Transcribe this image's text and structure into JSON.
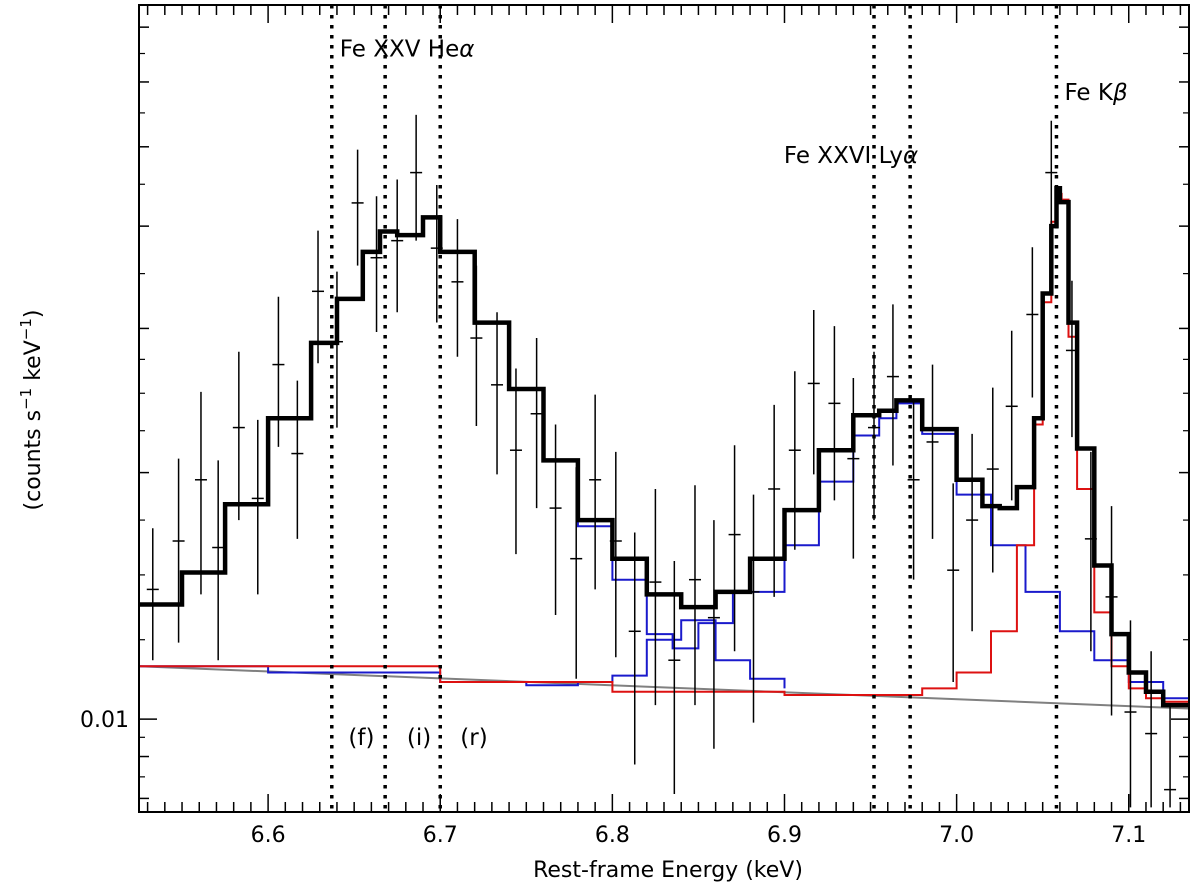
{
  "chart_data": {
    "type": "line",
    "title": "",
    "xlabel": "Rest-frame Energy (keV)",
    "ylabel_parts": [
      "counts s",
      "−1",
      " keV",
      "−1",
      ")"
    ],
    "ylabel_open": "(",
    "xlim": [
      6.525,
      7.135
    ],
    "ylim": [
      0.0077,
      0.0745
    ],
    "yscale": "log",
    "grid": false,
    "legend": "none",
    "x_ticks": [
      {
        "v": 6.6,
        "label": "6.6"
      },
      {
        "v": 6.7,
        "label": "6.7"
      },
      {
        "v": 6.8,
        "label": "6.8"
      },
      {
        "v": 6.9,
        "label": "6.9"
      },
      {
        "v": 7.0,
        "label": "7.0"
      },
      {
        "v": 7.1,
        "label": "7.1"
      }
    ],
    "y_ticks": [
      {
        "v": 0.01,
        "label": "0.01"
      }
    ],
    "vlines": [
      6.637,
      6.668,
      6.7,
      6.952,
      6.973,
      7.058
    ],
    "annotations": [
      {
        "text": "Fe XXV He",
        "greek": "α",
        "x": 6.637,
        "y": 0.0645
      },
      {
        "text": "Fe XXVI Ly",
        "greek": "α",
        "x": 6.895,
        "y": 0.0478
      },
      {
        "text": "Fe K",
        "greek": "β",
        "x": 7.058,
        "y": 0.057
      },
      {
        "text": "(f)",
        "greek": "",
        "x": 6.642,
        "y": 0.0093
      },
      {
        "text": "(i)",
        "greek": "",
        "x": 6.676,
        "y": 0.0093
      },
      {
        "text": "(r)",
        "greek": "",
        "x": 6.707,
        "y": 0.0093
      }
    ],
    "colors": {
      "total": "#000000",
      "lines": "#1a1acc",
      "kbeta": "#dd1111",
      "continuum": "#808080"
    },
    "series": [
      {
        "role": "total",
        "x": [
          6.525,
          6.55,
          6.575,
          6.6,
          6.625,
          6.64,
          6.655,
          6.665,
          6.675,
          6.69,
          6.7,
          6.72,
          6.74,
          6.76,
          6.78,
          6.8,
          6.82,
          6.84,
          6.86,
          6.88,
          6.9,
          6.92,
          6.94,
          6.955,
          6.965,
          6.98,
          7.0,
          7.015,
          7.025,
          7.035,
          7.045,
          7.05,
          7.055,
          7.058,
          7.06,
          7.065,
          7.07,
          7.08,
          7.09,
          7.1,
          7.11,
          7.12,
          7.135
        ],
        "y": [
          0.0138,
          0.0151,
          0.0183,
          0.0233,
          0.0288,
          0.0326,
          0.0372,
          0.0394,
          0.039,
          0.041,
          0.0372,
          0.0305,
          0.0253,
          0.0207,
          0.0175,
          0.0157,
          0.0142,
          0.0137,
          0.0143,
          0.0157,
          0.018,
          0.0213,
          0.0235,
          0.0238,
          0.0245,
          0.0226,
          0.0196,
          0.0182,
          0.0181,
          0.0192,
          0.0233,
          0.0331,
          0.04,
          0.0445,
          0.0428,
          0.0305,
          0.0214,
          0.0154,
          0.0127,
          0.0114,
          0.0108,
          0.0104,
          0.0104
        ]
      },
      {
        "role": "lines",
        "x": [
          6.525,
          6.55,
          6.575,
          6.6,
          6.625,
          6.64,
          6.655,
          6.665,
          6.675,
          6.69,
          6.7,
          6.72,
          6.74,
          6.76,
          6.78,
          6.8,
          6.82,
          6.835,
          6.85,
          6.87,
          6.9,
          6.92,
          6.94,
          6.955,
          6.965,
          6.98,
          7.0,
          7.02,
          7.04,
          7.06,
          7.08,
          7.1,
          7.12,
          7.135
        ],
        "y": [
          0.0138,
          0.0151,
          0.0183,
          0.0233,
          0.0288,
          0.0326,
          0.0372,
          0.0394,
          0.039,
          0.041,
          0.0372,
          0.0305,
          0.0253,
          0.0207,
          0.0172,
          0.0148,
          0.0127,
          0.0122,
          0.0131,
          0.0143,
          0.0163,
          0.0195,
          0.0222,
          0.0233,
          0.0243,
          0.0223,
          0.0188,
          0.0163,
          0.0143,
          0.0128,
          0.0118,
          0.0111,
          0.0106,
          0.0104
        ]
      },
      {
        "role": "lines",
        "x": [
          6.525,
          6.6,
          6.7,
          6.75,
          6.78,
          6.8,
          6.82,
          6.84,
          6.86,
          6.88,
          6.9
        ],
        "y": [
          0.0116,
          0.0114,
          0.0111,
          0.011,
          0.0111,
          0.0113,
          0.0125,
          0.0132,
          0.0118,
          0.0112,
          0.0109
        ]
      },
      {
        "role": "kbeta",
        "x": [
          6.525,
          6.7,
          6.8,
          6.9,
          6.95,
          6.98,
          7.0,
          7.02,
          7.035,
          7.045,
          7.05,
          7.055,
          7.058,
          7.061,
          7.065,
          7.07,
          7.08,
          7.09,
          7.1,
          7.11,
          7.12,
          7.135
        ],
        "y": [
          0.0116,
          0.0111,
          0.0108,
          0.0107,
          0.0107,
          0.0109,
          0.0114,
          0.0128,
          0.0163,
          0.0229,
          0.0323,
          0.0405,
          0.0438,
          0.0431,
          0.0293,
          0.0191,
          0.0135,
          0.0116,
          0.0109,
          0.0106,
          0.0105,
          0.0103
        ]
      },
      {
        "role": "continuum",
        "x": [
          6.525,
          7.135
        ],
        "y": [
          0.0116,
          0.0103
        ]
      },
      {
        "role": "data",
        "x": [
          6.533,
          6.548,
          6.561,
          6.571,
          6.583,
          6.594,
          6.606,
          6.617,
          6.629,
          6.64,
          6.652,
          6.663,
          6.675,
          6.686,
          6.698,
          6.71,
          6.721,
          6.733,
          6.744,
          6.756,
          6.767,
          6.779,
          6.79,
          6.802,
          6.813,
          6.825,
          6.836,
          6.848,
          6.859,
          6.871,
          6.882,
          6.894,
          6.906,
          6.917,
          6.929,
          6.94,
          6.952,
          6.963,
          6.975,
          6.986,
          6.998,
          7.009,
          7.021,
          7.032,
          7.044,
          7.055,
          7.067,
          7.078,
          7.09,
          7.101,
          7.113,
          7.124
        ],
        "y": [
          0.0144,
          0.0165,
          0.0196,
          0.0162,
          0.0227,
          0.0186,
          0.0271,
          0.0211,
          0.0333,
          0.0289,
          0.0427,
          0.0366,
          0.0384,
          0.0465,
          0.0376,
          0.0342,
          0.0292,
          0.0256,
          0.0213,
          0.0236,
          0.0181,
          0.0157,
          0.0196,
          0.0165,
          0.0128,
          0.0147,
          0.0118,
          0.0148,
          0.0133,
          0.0168,
          0.0143,
          0.0191,
          0.0213,
          0.0257,
          0.0243,
          0.0208,
          0.0227,
          0.0262,
          0.0196,
          0.0218,
          0.0152,
          0.0175,
          0.0202,
          0.0241,
          0.0312,
          0.0465,
          0.0282,
          0.0166,
          0.0141,
          0.0102,
          0.0096,
          0.0082
        ],
        "err_lo": [
          0.0118,
          0.0124,
          0.0142,
          0.0118,
          0.0175,
          0.0142,
          0.0215,
          0.0166,
          0.0272,
          0.0227,
          0.0358,
          0.0297,
          0.0314,
          0.0384,
          0.0305,
          0.0277,
          0.0228,
          0.0199,
          0.0159,
          0.0181,
          0.0134,
          0.0112,
          0.0144,
          0.0119,
          0.0088,
          0.0104,
          0.0081,
          0.0104,
          0.0092,
          0.0121,
          0.0099,
          0.0141,
          0.0161,
          0.0199,
          0.0185,
          0.0157,
          0.0175,
          0.0204,
          0.0148,
          0.0166,
          0.0111,
          0.0128,
          0.0151,
          0.0185,
          0.0247,
          0.0391,
          0.0221,
          0.0121,
          0.0101,
          0.0078,
          0.0078,
          0.0078
        ],
        "err_hi": [
          0.0171,
          0.0208,
          0.0251,
          0.0207,
          0.0281,
          0.0232,
          0.0328,
          0.0259,
          0.0395,
          0.0352,
          0.0496,
          0.0435,
          0.0456,
          0.0547,
          0.0449,
          0.0408,
          0.0358,
          0.0314,
          0.0268,
          0.0292,
          0.0229,
          0.0203,
          0.0249,
          0.0212,
          0.0169,
          0.0191,
          0.0156,
          0.0193,
          0.0175,
          0.0216,
          0.0188,
          0.0242,
          0.0266,
          0.0316,
          0.0302,
          0.0261,
          0.0281,
          0.0321,
          0.0245,
          0.0271,
          0.0194,
          0.0223,
          0.0254,
          0.0298,
          0.0377,
          0.0538,
          0.0343,
          0.0212,
          0.0182,
          0.0132,
          0.0121,
          0.0104
        ]
      }
    ]
  }
}
